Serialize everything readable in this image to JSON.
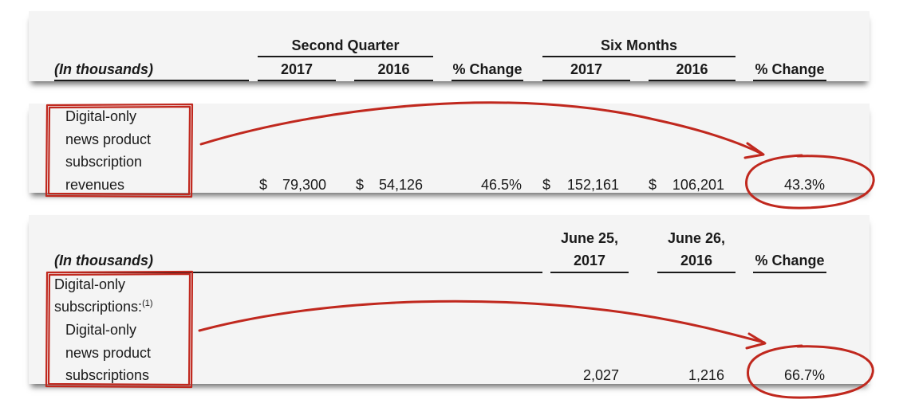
{
  "table1": {
    "units_label": "(In thousands)",
    "group_second_quarter": "Second Quarter",
    "group_six_months": "Six Months",
    "col_sq_2017": "2017",
    "col_sq_2016": "2016",
    "col_sq_change": "% Change",
    "col_sm_2017": "2017",
    "col_sm_2016": "2016",
    "col_sm_change": "% Change",
    "row": {
      "label_lines": [
        "Digital-only",
        "news product",
        "subscription",
        "revenues"
      ],
      "currency": "$",
      "sq_2017": "79,300",
      "sq_2016": "54,126",
      "sq_change": "46.5%",
      "sm_2017": "152,161",
      "sm_2016": "106,201",
      "sm_change": "43.3%"
    }
  },
  "table2": {
    "units_label": "(In thousands)",
    "col_a_line1": "June 25,",
    "col_a_line2": "2017",
    "col_b_line1": "June 26,",
    "col_b_line2": "2016",
    "col_change": "% Change",
    "section_label_line1": "Digital-only",
    "section_label_line2": "subscriptions:",
    "section_footnote": "(1)",
    "row": {
      "label_lines": [
        "Digital-only",
        "news product",
        "subscriptions"
      ],
      "val_a": "2,027",
      "val_b": "1,216",
      "change": "66.7%"
    }
  },
  "annotation_color": "#c0281e"
}
